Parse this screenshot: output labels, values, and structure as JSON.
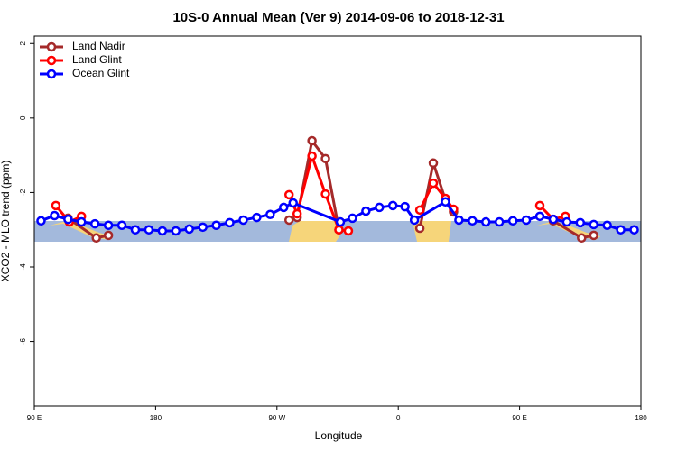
{
  "chart_data": {
    "type": "line",
    "title": "10S-0 Annual Mean (Ver 9)   2014-09-06 to 2018-12-31",
    "x_label": "Longitude",
    "y_label": "XCO2 - MLO trend (ppm)",
    "xlim": [
      90,
      540
    ],
    "ylim": [
      -7.73,
      2.2
    ],
    "xticks": [
      {
        "value": 90,
        "label": "90 E"
      },
      180,
      {
        "value": 270,
        "label": "90 W"
      },
      {
        "value": 360,
        "label": "0"
      },
      {
        "value": 450,
        "label": "90 E"
      },
      {
        "value": 540,
        "label": "180"
      }
    ],
    "yticks": [
      -6,
      -4,
      -2,
      0,
      2
    ],
    "grid": false,
    "legend": "top-left",
    "series": [
      {
        "name": "Land Nadir",
        "color": "#a52a2a",
        "x": [
          115,
          136,
          145,
          null,
          279,
          285,
          296,
          306,
          316,
          null,
          376,
          386,
          395,
          401,
          null,
          475,
          496,
          505
        ],
        "values": [
          -2.69,
          -3.22,
          -3.15,
          null,
          -2.74,
          -2.67,
          -0.61,
          -1.09,
          -3.0,
          null,
          -2.96,
          -1.21,
          -2.2,
          -2.52,
          null,
          -2.76,
          -3.22,
          -3.15
        ]
      },
      {
        "name": "Land Glint",
        "color": "#ff0000",
        "x": [
          106,
          116,
          125,
          null,
          279,
          285,
          296,
          306,
          316,
          323,
          null,
          376,
          386,
          395,
          401,
          null,
          465,
          475,
          484
        ],
        "values": [
          -2.35,
          -2.79,
          -2.64,
          null,
          -2.06,
          -2.57,
          -1.02,
          -2.04,
          -3.0,
          -3.03,
          null,
          -2.47,
          -1.75,
          -2.16,
          -2.45,
          null,
          -2.35,
          -2.72,
          -2.64
        ]
      },
      {
        "name": "Ocean Glint",
        "color": "#0000ff",
        "x": [
          95,
          105,
          115,
          125,
          135,
          145,
          155,
          165,
          175,
          185,
          195,
          205,
          215,
          225,
          235,
          245,
          255,
          265,
          275,
          282,
          317,
          326,
          336,
          346,
          356,
          365,
          372,
          395,
          405,
          415,
          425,
          435,
          445,
          455,
          465,
          475,
          485,
          495,
          505,
          515,
          525,
          535
        ],
        "values": [
          -2.76,
          -2.62,
          -2.72,
          -2.79,
          -2.84,
          -2.88,
          -2.88,
          -3.0,
          -3.0,
          -3.03,
          -3.03,
          -2.98,
          -2.93,
          -2.88,
          -2.81,
          -2.74,
          -2.67,
          -2.59,
          -2.4,
          -2.28,
          -2.79,
          -2.69,
          -2.5,
          -2.4,
          -2.35,
          -2.38,
          -2.74,
          -2.25,
          -2.74,
          -2.76,
          -2.79,
          -2.79,
          -2.76,
          -2.74,
          -2.64,
          -2.72,
          -2.79,
          -2.81,
          -2.86,
          -2.88,
          -3.0,
          -3.0
        ]
      }
    ]
  }
}
